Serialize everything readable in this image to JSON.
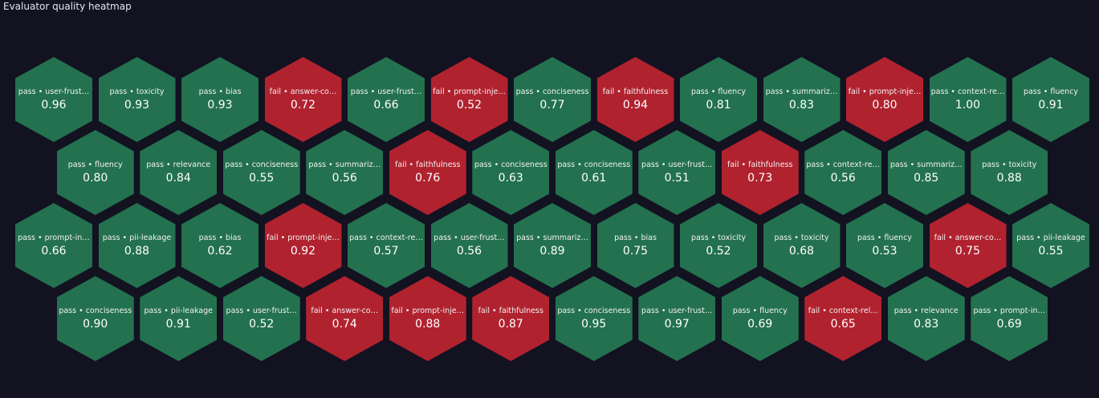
{
  "chart_data": {
    "type": "heatmap",
    "title": "Evaluator quality heatmap",
    "colors": {
      "pass": "#23714f",
      "fail": "#b1222f",
      "background": "#121221"
    },
    "rows": [
      [
        {
          "status": "pass",
          "label": "pass • user-frust…",
          "value": "0.96"
        },
        {
          "status": "pass",
          "label": "pass • toxicity",
          "value": "0.93"
        },
        {
          "status": "pass",
          "label": "pass • bias",
          "value": "0.93"
        },
        {
          "status": "fail",
          "label": "fail • answer-co…",
          "value": "0.72"
        },
        {
          "status": "pass",
          "label": "pass • user-frust…",
          "value": "0.66"
        },
        {
          "status": "fail",
          "label": "fail • prompt-inje…",
          "value": "0.52"
        },
        {
          "status": "pass",
          "label": "pass • conciseness",
          "value": "0.77"
        },
        {
          "status": "fail",
          "label": "fail • faithfulness",
          "value": "0.94"
        },
        {
          "status": "pass",
          "label": "pass • fluency",
          "value": "0.81"
        },
        {
          "status": "pass",
          "label": "pass • summariz…",
          "value": "0.83"
        },
        {
          "status": "fail",
          "label": "fail • prompt-inje…",
          "value": "0.80"
        },
        {
          "status": "pass",
          "label": "pass • context-re…",
          "value": "1.00"
        },
        {
          "status": "pass",
          "label": "pass • fluency",
          "value": "0.91"
        }
      ],
      [
        {
          "status": "pass",
          "label": "pass • fluency",
          "value": "0.80"
        },
        {
          "status": "pass",
          "label": "pass • relevance",
          "value": "0.84"
        },
        {
          "status": "pass",
          "label": "pass • conciseness",
          "value": "0.55"
        },
        {
          "status": "pass",
          "label": "pass • summariz…",
          "value": "0.56"
        },
        {
          "status": "fail",
          "label": "fail • faithfulness",
          "value": "0.76"
        },
        {
          "status": "pass",
          "label": "pass • conciseness",
          "value": "0.63"
        },
        {
          "status": "pass",
          "label": "pass • conciseness",
          "value": "0.61"
        },
        {
          "status": "pass",
          "label": "pass • user-frust…",
          "value": "0.51"
        },
        {
          "status": "fail",
          "label": "fail • faithfulness",
          "value": "0.73"
        },
        {
          "status": "pass",
          "label": "pass • context-re…",
          "value": "0.56"
        },
        {
          "status": "pass",
          "label": "pass • summariz…",
          "value": "0.85"
        },
        {
          "status": "pass",
          "label": "pass • toxicity",
          "value": "0.88"
        }
      ],
      [
        {
          "status": "pass",
          "label": "pass • prompt-in…",
          "value": "0.66"
        },
        {
          "status": "pass",
          "label": "pass • pii-leakage",
          "value": "0.88"
        },
        {
          "status": "pass",
          "label": "pass • bias",
          "value": "0.62"
        },
        {
          "status": "fail",
          "label": "fail • prompt-inje…",
          "value": "0.92"
        },
        {
          "status": "pass",
          "label": "pass • context-re…",
          "value": "0.57"
        },
        {
          "status": "pass",
          "label": "pass • user-frust…",
          "value": "0.56"
        },
        {
          "status": "pass",
          "label": "pass • summariz…",
          "value": "0.89"
        },
        {
          "status": "pass",
          "label": "pass • bias",
          "value": "0.75"
        },
        {
          "status": "pass",
          "label": "pass • toxicity",
          "value": "0.52"
        },
        {
          "status": "pass",
          "label": "pass • toxicity",
          "value": "0.68"
        },
        {
          "status": "pass",
          "label": "pass • fluency",
          "value": "0.53"
        },
        {
          "status": "fail",
          "label": "fail • answer-co…",
          "value": "0.75"
        },
        {
          "status": "pass",
          "label": "pass • pii-leakage",
          "value": "0.55"
        }
      ],
      [
        {
          "status": "pass",
          "label": "pass • conciseness",
          "value": "0.90"
        },
        {
          "status": "pass",
          "label": "pass • pii-leakage",
          "value": "0.91"
        },
        {
          "status": "pass",
          "label": "pass • user-frust…",
          "value": "0.52"
        },
        {
          "status": "fail",
          "label": "fail • answer-co…",
          "value": "0.74"
        },
        {
          "status": "fail",
          "label": "fail • prompt-inje…",
          "value": "0.88"
        },
        {
          "status": "fail",
          "label": "fail • faithfulness",
          "value": "0.87"
        },
        {
          "status": "pass",
          "label": "pass • conciseness",
          "value": "0.95"
        },
        {
          "status": "pass",
          "label": "pass • user-frust…",
          "value": "0.97"
        },
        {
          "status": "pass",
          "label": "pass • fluency",
          "value": "0.69"
        },
        {
          "status": "fail",
          "label": "fail • context-rel…",
          "value": "0.65"
        },
        {
          "status": "pass",
          "label": "pass • relevance",
          "value": "0.83"
        },
        {
          "status": "pass",
          "label": "pass • prompt-in…",
          "value": "0.69"
        }
      ]
    ]
  }
}
